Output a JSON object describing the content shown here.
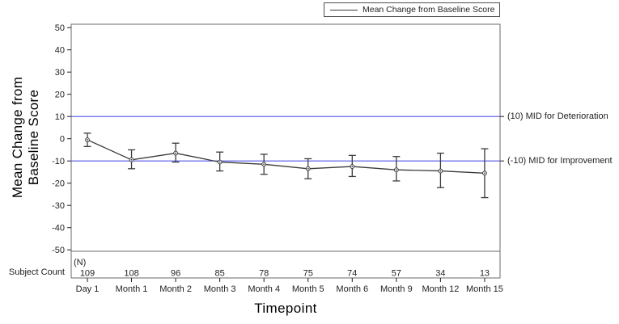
{
  "chart_data": {
    "type": "line",
    "title": "",
    "x_title": "Timepoint",
    "y_title": "Mean Change from Baseline Score",
    "y_title_lines": [
      "Mean Change from",
      "Baseline Score"
    ],
    "categories": [
      "Day 1",
      "Month 1",
      "Month 2",
      "Month 3",
      "Month 4",
      "Month 5",
      "Month 6",
      "Month 9",
      "Month 12",
      "Month 15"
    ],
    "series": [
      {
        "name": "Mean Change from Baseline Score",
        "values": [
          -0.5,
          -9.5,
          -6.5,
          -10.5,
          -11.5,
          -13.5,
          -12.5,
          -14,
          -14.5,
          -15.5
        ],
        "upper": [
          2.5,
          -5,
          -2,
          -6,
          -7,
          -9,
          -7.5,
          -8,
          -6.5,
          -4.5
        ],
        "lower": [
          -3.5,
          -13.5,
          -10.5,
          -14.5,
          -16,
          -18,
          -17,
          -19,
          -22,
          -26.5
        ]
      }
    ],
    "error_bars": true,
    "ylim": [
      -50,
      50
    ],
    "y_ticks": [
      50,
      40,
      30,
      20,
      10,
      0,
      -10,
      -20,
      -30,
      -40,
      -50
    ],
    "ref_lines": [
      {
        "value": 10,
        "label": "(10) MID for Deterioration"
      },
      {
        "value": -10,
        "label": "(-10) MID for Improvement"
      }
    ],
    "subject_counts": {
      "row_label": "Subject Count",
      "n_label": "(N)",
      "values": [
        109,
        108,
        96,
        85,
        78,
        75,
        74,
        57,
        34,
        13
      ]
    },
    "legend_position": "top-right",
    "grid": false,
    "colors": {
      "series": "#3b3b3b",
      "ref_line": "#5353e8",
      "border": "#6a6a6a",
      "text": "#1f1f1f"
    }
  }
}
